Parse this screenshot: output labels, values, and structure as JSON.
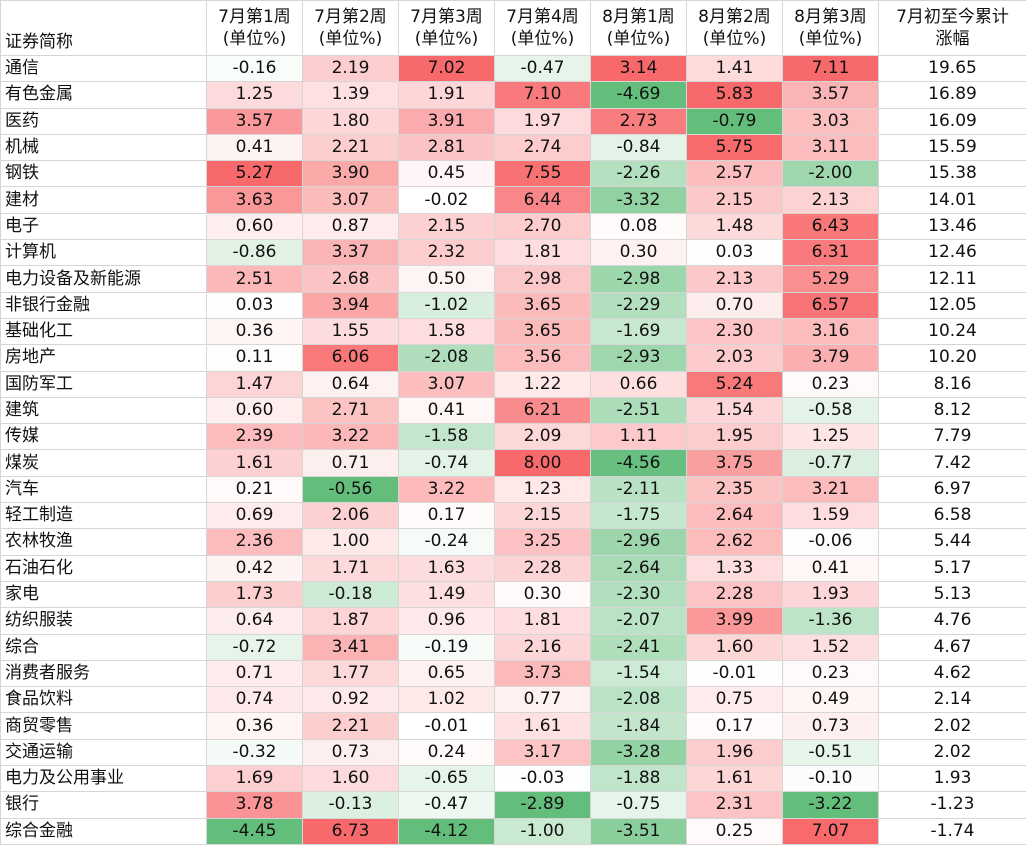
{
  "header": {
    "name": "证券简称",
    "columns": [
      [
        "7月第1周",
        "(单位%)"
      ],
      [
        "7月第2周",
        "(单位%)"
      ],
      [
        "7月第3周",
        "(单位%)"
      ],
      [
        "7月第4周",
        "(单位%)"
      ],
      [
        "8月第1周",
        "(单位%)"
      ],
      [
        "8月第2周",
        "(单位%)"
      ],
      [
        "8月第3周",
        "(单位%)"
      ],
      [
        "7月初至今累计",
        "涨幅"
      ]
    ]
  },
  "rows": [
    {
      "name": "通信",
      "values": [
        "-0.16",
        "2.19",
        "7.02",
        "-0.47",
        "3.14",
        "1.41",
        "7.11"
      ],
      "total": "19.65"
    },
    {
      "name": "有色金属",
      "values": [
        "1.25",
        "1.39",
        "1.91",
        "7.10",
        "-4.69",
        "5.83",
        "3.57"
      ],
      "total": "16.89"
    },
    {
      "name": "医药",
      "values": [
        "3.57",
        "1.80",
        "3.91",
        "1.97",
        "2.73",
        "-0.79",
        "3.03"
      ],
      "total": "16.09"
    },
    {
      "name": "机械",
      "values": [
        "0.41",
        "2.21",
        "2.81",
        "2.74",
        "-0.84",
        "5.75",
        "3.11"
      ],
      "total": "15.59"
    },
    {
      "name": "钢铁",
      "values": [
        "5.27",
        "3.90",
        "0.45",
        "7.55",
        "-2.26",
        "2.57",
        "-2.00"
      ],
      "total": "15.38"
    },
    {
      "name": "建材",
      "values": [
        "3.63",
        "3.07",
        "-0.02",
        "6.44",
        "-3.32",
        "2.15",
        "2.13"
      ],
      "total": "14.01"
    },
    {
      "name": "电子",
      "values": [
        "0.60",
        "0.87",
        "2.15",
        "2.70",
        "0.08",
        "1.48",
        "6.43"
      ],
      "total": "13.46"
    },
    {
      "name": "计算机",
      "values": [
        "-0.86",
        "3.37",
        "2.32",
        "1.81",
        "0.30",
        "0.03",
        "6.31"
      ],
      "total": "12.46"
    },
    {
      "name": "电力设备及新能源",
      "values": [
        "2.51",
        "2.68",
        "0.50",
        "2.98",
        "-2.98",
        "2.13",
        "5.29"
      ],
      "total": "12.11"
    },
    {
      "name": "非银行金融",
      "values": [
        "0.03",
        "3.94",
        "-1.02",
        "3.65",
        "-2.29",
        "0.70",
        "6.57"
      ],
      "total": "12.05"
    },
    {
      "name": "基础化工",
      "values": [
        "0.36",
        "1.55",
        "1.58",
        "3.65",
        "-1.69",
        "2.30",
        "3.16"
      ],
      "total": "10.24"
    },
    {
      "name": "房地产",
      "values": [
        "0.11",
        "6.06",
        "-2.08",
        "3.56",
        "-2.93",
        "2.03",
        "3.79"
      ],
      "total": "10.20"
    },
    {
      "name": "国防军工",
      "values": [
        "1.47",
        "0.64",
        "3.07",
        "1.22",
        "0.66",
        "5.24",
        "0.23"
      ],
      "total": "8.16"
    },
    {
      "name": "建筑",
      "values": [
        "0.60",
        "2.71",
        "0.41",
        "6.21",
        "-2.51",
        "1.54",
        "-0.58"
      ],
      "total": "8.12"
    },
    {
      "name": "传媒",
      "values": [
        "2.39",
        "3.22",
        "-1.58",
        "2.09",
        "1.11",
        "1.95",
        "1.25"
      ],
      "total": "7.79"
    },
    {
      "name": "煤炭",
      "values": [
        "1.61",
        "0.71",
        "-0.74",
        "8.00",
        "-4.56",
        "3.75",
        "-0.77"
      ],
      "total": "7.42"
    },
    {
      "name": "汽车",
      "values": [
        "0.21",
        "-0.56",
        "3.22",
        "1.23",
        "-2.11",
        "2.35",
        "3.21"
      ],
      "total": "6.97"
    },
    {
      "name": "轻工制造",
      "values": [
        "0.69",
        "2.06",
        "0.17",
        "2.15",
        "-1.75",
        "2.64",
        "1.59"
      ],
      "total": "6.58"
    },
    {
      "name": "农林牧渔",
      "values": [
        "2.36",
        "1.00",
        "-0.24",
        "3.25",
        "-2.96",
        "2.62",
        "-0.06"
      ],
      "total": "5.44"
    },
    {
      "name": "石油石化",
      "values": [
        "0.42",
        "1.71",
        "1.63",
        "2.28",
        "-2.64",
        "1.33",
        "0.41"
      ],
      "total": "5.17"
    },
    {
      "name": "家电",
      "values": [
        "1.73",
        "-0.18",
        "1.49",
        "0.30",
        "-2.30",
        "2.28",
        "1.93"
      ],
      "total": "5.13"
    },
    {
      "name": "纺织服装",
      "values": [
        "0.64",
        "1.87",
        "0.96",
        "1.81",
        "-2.07",
        "3.99",
        "-1.36"
      ],
      "total": "4.76"
    },
    {
      "name": "综合",
      "values": [
        "-0.72",
        "3.41",
        "-0.19",
        "2.16",
        "-2.41",
        "1.60",
        "1.52"
      ],
      "total": "4.67"
    },
    {
      "name": "消费者服务",
      "values": [
        "0.71",
        "1.77",
        "0.65",
        "3.73",
        "-1.54",
        "-0.01",
        "0.23"
      ],
      "total": "4.62"
    },
    {
      "name": "食品饮料",
      "values": [
        "0.74",
        "0.92",
        "1.02",
        "0.77",
        "-2.08",
        "0.75",
        "0.49"
      ],
      "total": "2.14"
    },
    {
      "name": "商贸零售",
      "values": [
        "0.36",
        "2.21",
        "-0.01",
        "1.61",
        "-1.84",
        "0.17",
        "0.73"
      ],
      "total": "2.02"
    },
    {
      "name": "交通运输",
      "values": [
        "-0.32",
        "0.73",
        "0.24",
        "3.17",
        "-3.28",
        "1.96",
        "-0.51"
      ],
      "total": "2.02"
    },
    {
      "name": "电力及公用事业",
      "values": [
        "1.69",
        "1.60",
        "-0.65",
        "-0.03",
        "-1.88",
        "1.61",
        "-0.10"
      ],
      "total": "1.93"
    },
    {
      "name": "银行",
      "values": [
        "3.78",
        "-0.13",
        "-0.47",
        "-2.89",
        "-0.75",
        "2.31",
        "-3.22"
      ],
      "total": "-1.23"
    },
    {
      "name": "综合金融",
      "values": [
        "-4.45",
        "6.73",
        "-4.12",
        "-1.00",
        "-3.51",
        "0.25",
        "7.07"
      ],
      "total": "-1.74"
    }
  ],
  "colors": {
    "positive": "#f8696b",
    "negative": "#63be7b",
    "neutral": "#ffffff",
    "grid": "#d6d6d6"
  }
}
